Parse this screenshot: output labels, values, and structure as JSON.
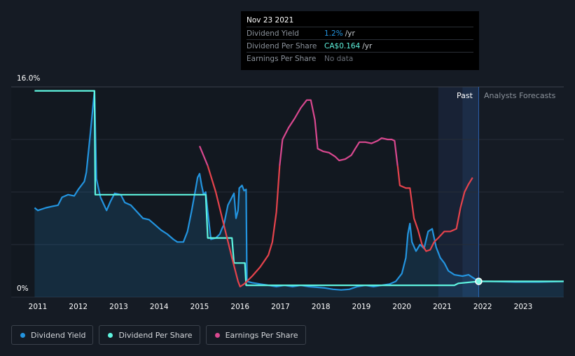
{
  "tooltip": {
    "date": "Nov 23 2021",
    "rows": [
      {
        "label": "Dividend Yield",
        "value": "1.2%",
        "unit": "/yr",
        "color": "#2394df"
      },
      {
        "label": "Dividend Per Share",
        "value": "CA$0.164",
        "unit": "/yr",
        "color": "#5ff5e0"
      },
      {
        "label": "Earnings Per Share",
        "value": "No data",
        "unit": "",
        "color": "#6a7079"
      }
    ]
  },
  "zones": {
    "past": "Past",
    "forecast": "Analysts Forecasts"
  },
  "legend": [
    {
      "label": "Dividend Yield",
      "color": "#2394df"
    },
    {
      "label": "Dividend Per Share",
      "color": "#5ff5e0"
    },
    {
      "label": "Earnings Per Share",
      "color": "#d9488f"
    }
  ],
  "chart_data": {
    "type": "line",
    "y_axis_labels": [
      "16.0%",
      "0%"
    ],
    "ylim": [
      0,
      16
    ],
    "xlim": [
      2010.75,
      2024.0
    ],
    "x_ticks": [
      "2011",
      "2012",
      "2013",
      "2014",
      "2015",
      "2016",
      "2017",
      "2018",
      "2019",
      "2020",
      "2021",
      "2022",
      "2023"
    ],
    "forecast_start": 2021.9,
    "past_shade_start": 2020.9,
    "series": [
      {
        "name": "Dividend Yield",
        "color": "#2394df",
        "area": true,
        "points": [
          [
            2010.92,
            6.8
          ],
          [
            2011.0,
            6.6
          ],
          [
            2011.2,
            6.8
          ],
          [
            2011.35,
            6.9
          ],
          [
            2011.5,
            7.0
          ],
          [
            2011.6,
            7.6
          ],
          [
            2011.75,
            7.8
          ],
          [
            2011.9,
            7.7
          ],
          [
            2012.0,
            8.2
          ],
          [
            2012.15,
            8.8
          ],
          [
            2012.2,
            9.5
          ],
          [
            2012.3,
            12.5
          ],
          [
            2012.4,
            15.7
          ],
          [
            2012.45,
            9.0
          ],
          [
            2012.55,
            7.6
          ],
          [
            2012.7,
            6.6
          ],
          [
            2012.8,
            7.3
          ],
          [
            2012.9,
            7.9
          ],
          [
            2013.05,
            7.8
          ],
          [
            2013.15,
            7.2
          ],
          [
            2013.3,
            7.0
          ],
          [
            2013.45,
            6.5
          ],
          [
            2013.6,
            6.0
          ],
          [
            2013.75,
            5.9
          ],
          [
            2013.9,
            5.5
          ],
          [
            2014.05,
            5.1
          ],
          [
            2014.2,
            4.8
          ],
          [
            2014.35,
            4.4
          ],
          [
            2014.45,
            4.2
          ],
          [
            2014.6,
            4.2
          ],
          [
            2014.7,
            5.0
          ],
          [
            2014.8,
            6.5
          ],
          [
            2014.9,
            8.2
          ],
          [
            2014.95,
            9.1
          ],
          [
            2015.0,
            9.4
          ],
          [
            2015.05,
            8.5
          ],
          [
            2015.1,
            7.8
          ],
          [
            2015.15,
            8.0
          ],
          [
            2015.2,
            6.5
          ],
          [
            2015.28,
            4.4
          ],
          [
            2015.4,
            4.5
          ],
          [
            2015.5,
            4.8
          ],
          [
            2015.55,
            5.2
          ],
          [
            2015.6,
            5.5
          ],
          [
            2015.7,
            7.0
          ],
          [
            2015.8,
            7.6
          ],
          [
            2015.85,
            7.9
          ],
          [
            2015.9,
            6.0
          ],
          [
            2015.95,
            6.6
          ],
          [
            2015.98,
            8.3
          ],
          [
            2016.05,
            8.5
          ],
          [
            2016.1,
            8.1
          ],
          [
            2016.15,
            8.2
          ],
          [
            2016.17,
            1.2
          ],
          [
            2016.3,
            1.1
          ],
          [
            2016.5,
            1.0
          ],
          [
            2016.7,
            0.9
          ],
          [
            2016.9,
            0.8
          ],
          [
            2017.1,
            0.9
          ],
          [
            2017.3,
            0.8
          ],
          [
            2017.5,
            0.9
          ],
          [
            2017.7,
            0.8
          ],
          [
            2017.9,
            0.75
          ],
          [
            2018.1,
            0.7
          ],
          [
            2018.3,
            0.6
          ],
          [
            2018.5,
            0.55
          ],
          [
            2018.7,
            0.6
          ],
          [
            2018.9,
            0.8
          ],
          [
            2019.1,
            0.9
          ],
          [
            2019.3,
            0.8
          ],
          [
            2019.5,
            0.9
          ],
          [
            2019.7,
            1.0
          ],
          [
            2019.85,
            1.2
          ],
          [
            2020.0,
            1.8
          ],
          [
            2020.1,
            3.0
          ],
          [
            2020.15,
            4.8
          ],
          [
            2020.2,
            5.6
          ],
          [
            2020.25,
            4.2
          ],
          [
            2020.35,
            3.5
          ],
          [
            2020.45,
            4.0
          ],
          [
            2020.55,
            3.7
          ],
          [
            2020.65,
            5.0
          ],
          [
            2020.75,
            5.2
          ],
          [
            2020.85,
            3.8
          ],
          [
            2020.95,
            3.0
          ],
          [
            2021.05,
            2.6
          ],
          [
            2021.15,
            2.0
          ],
          [
            2021.3,
            1.7
          ],
          [
            2021.5,
            1.6
          ],
          [
            2021.65,
            1.7
          ],
          [
            2021.75,
            1.5
          ],
          [
            2021.9,
            1.2
          ],
          [
            2022.2,
            1.2
          ],
          [
            2022.8,
            1.15
          ],
          [
            2023.4,
            1.15
          ],
          [
            2024.0,
            1.2
          ]
        ]
      },
      {
        "name": "Dividend Per Share",
        "color": "#5ff5e0",
        "area": false,
        "points": [
          [
            2010.92,
            15.7
          ],
          [
            2012.4,
            15.7
          ],
          [
            2012.42,
            7.8
          ],
          [
            2015.15,
            7.8
          ],
          [
            2015.2,
            4.5
          ],
          [
            2015.8,
            4.5
          ],
          [
            2015.85,
            2.6
          ],
          [
            2016.12,
            2.6
          ],
          [
            2016.15,
            0.9
          ],
          [
            2021.3,
            0.9
          ],
          [
            2021.4,
            1.05
          ],
          [
            2021.9,
            1.2
          ],
          [
            2022.5,
            1.2
          ],
          [
            2024.0,
            1.2
          ]
        ]
      },
      {
        "name": "Earnings Per Share",
        "color": "#d9488f",
        "negColor": "#e5434c",
        "negThreshold": 10.0,
        "points": [
          [
            2015.0,
            11.5
          ],
          [
            2015.2,
            10.0
          ],
          [
            2015.4,
            8.0
          ],
          [
            2015.6,
            5.5
          ],
          [
            2015.8,
            3.0
          ],
          [
            2015.95,
            1.2
          ],
          [
            2016.0,
            0.8
          ],
          [
            2016.1,
            1.0
          ],
          [
            2016.3,
            1.6
          ],
          [
            2016.5,
            2.3
          ],
          [
            2016.7,
            3.2
          ],
          [
            2016.8,
            4.2
          ],
          [
            2016.9,
            6.5
          ],
          [
            2016.98,
            10.0
          ],
          [
            2017.05,
            12.0
          ],
          [
            2017.2,
            12.9
          ],
          [
            2017.35,
            13.6
          ],
          [
            2017.5,
            14.4
          ],
          [
            2017.65,
            15.0
          ],
          [
            2017.75,
            15.0
          ],
          [
            2017.85,
            13.5
          ],
          [
            2017.92,
            11.3
          ],
          [
            2018.05,
            11.1
          ],
          [
            2018.2,
            11.0
          ],
          [
            2018.35,
            10.7
          ],
          [
            2018.45,
            10.4
          ],
          [
            2018.6,
            10.5
          ],
          [
            2018.75,
            10.8
          ],
          [
            2018.85,
            11.3
          ],
          [
            2018.95,
            11.8
          ],
          [
            2019.1,
            11.8
          ],
          [
            2019.25,
            11.7
          ],
          [
            2019.4,
            11.9
          ],
          [
            2019.5,
            12.1
          ],
          [
            2019.65,
            12.0
          ],
          [
            2019.75,
            12.0
          ],
          [
            2019.82,
            11.9
          ],
          [
            2019.9,
            9.9
          ],
          [
            2019.95,
            8.5
          ],
          [
            2020.1,
            8.3
          ],
          [
            2020.2,
            8.3
          ],
          [
            2020.3,
            6.0
          ],
          [
            2020.4,
            5.1
          ],
          [
            2020.5,
            4.0
          ],
          [
            2020.6,
            3.5
          ],
          [
            2020.7,
            3.6
          ],
          [
            2020.8,
            4.2
          ],
          [
            2020.9,
            4.5
          ],
          [
            2021.05,
            5.0
          ],
          [
            2021.2,
            5.0
          ],
          [
            2021.35,
            5.2
          ],
          [
            2021.45,
            6.8
          ],
          [
            2021.55,
            8.0
          ],
          [
            2021.65,
            8.6
          ],
          [
            2021.75,
            9.1
          ]
        ]
      }
    ]
  }
}
